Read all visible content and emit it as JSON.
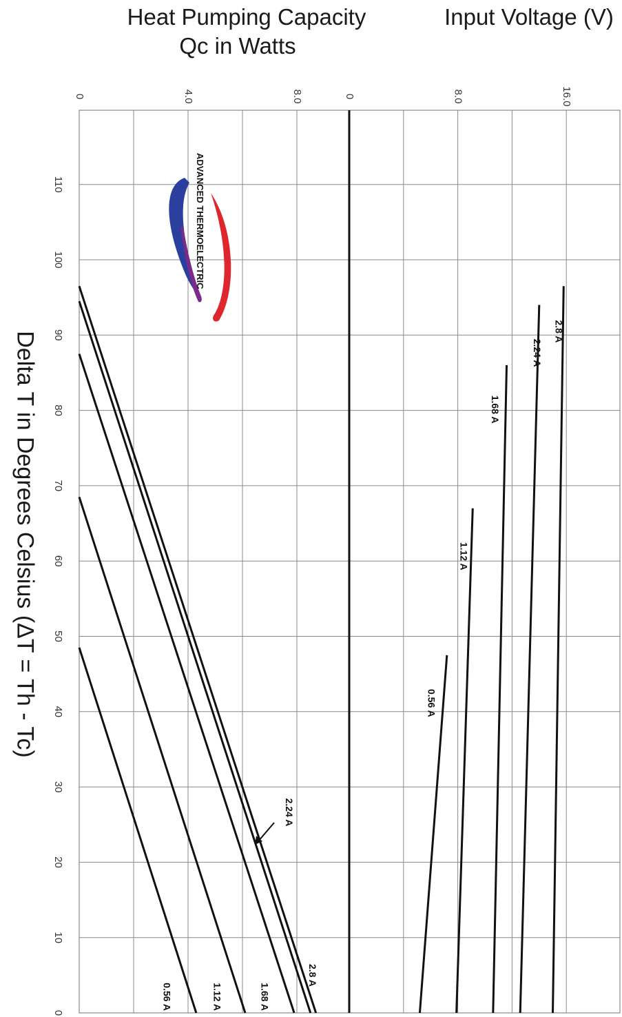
{
  "title_q_line1": "Heat Pumping Capacity",
  "title_q_line2": "Qc in Watts",
  "title_v": "Input Voltage (V)",
  "xlabel": "Delta T in Degrees Celsius    (ΔT = Th - Tc)",
  "logo_text": "ADVANCED THERMOELECTRIC",
  "colors": {
    "line": "#111111",
    "grid": "#888888",
    "logo_blue": "#2a3f9e",
    "logo_purple": "#7a2a8a",
    "logo_red": "#e0262d"
  },
  "chart_data": [
    {
      "type": "line",
      "title": "Heat Pumping Capacity Qc in Watts",
      "xlabel": "Delta T in Degrees Celsius (ΔT = Th - Tc)",
      "ylabel": "Heat Pumping Capacity Qc in Watts",
      "x_ticks": [
        0,
        10,
        20,
        30,
        40,
        50,
        60,
        70,
        80,
        90,
        100,
        110
      ],
      "y_ticks": [
        "0",
        "4.0",
        "8.0"
      ],
      "xlim": [
        0,
        120
      ],
      "ylim": [
        0,
        10
      ],
      "series": [
        {
          "name": "0.56 A",
          "x": [
            0,
            48.5
          ],
          "y": [
            4.3,
            0
          ]
        },
        {
          "name": "1.12 A",
          "x": [
            0,
            68.5
          ],
          "y": [
            6.1,
            0
          ]
        },
        {
          "name": "1.68 A",
          "x": [
            0,
            87.5
          ],
          "y": [
            7.9,
            0
          ]
        },
        {
          "name": "2.24 A",
          "x": [
            0,
            94.5
          ],
          "y": [
            8.5,
            0
          ]
        },
        {
          "name": "2.8 A",
          "x": [
            0,
            96.5
          ],
          "y": [
            8.7,
            0
          ]
        }
      ],
      "annotations": [
        {
          "text": "0.56 A",
          "x": 4,
          "y": 3.1
        },
        {
          "text": "1.12 A",
          "x": 4,
          "y": 4.95
        },
        {
          "text": "1.68 A",
          "x": 4,
          "y": 6.7
        },
        {
          "text": "2.8 A",
          "x": 6.5,
          "y": 8.45
        },
        {
          "text": "2.24 A",
          "x": 28.5,
          "y": 7.6
        }
      ]
    },
    {
      "type": "line",
      "title": "Input Voltage (V)",
      "xlabel": "Delta T in Degrees Celsius (ΔT = Th - Tc)",
      "ylabel": "Input Voltage (V)",
      "x_ticks": [
        0,
        10,
        20,
        30,
        40,
        50,
        60,
        70,
        80,
        90,
        100,
        110
      ],
      "y_ticks": [
        "0",
        "8.0",
        "16.0"
      ],
      "xlim": [
        0,
        120
      ],
      "ylim": [
        0,
        20
      ],
      "series": [
        {
          "name": "0.56 A",
          "x": [
            0,
            47.5
          ],
          "y": [
            5.2,
            7.2
          ]
        },
        {
          "name": "1.12 A",
          "x": [
            0,
            67
          ],
          "y": [
            7.9,
            9.1
          ]
        },
        {
          "name": "1.68 A",
          "x": [
            0,
            86
          ],
          "y": [
            10.6,
            11.6
          ]
        },
        {
          "name": "2.24 A",
          "x": [
            0,
            94
          ],
          "y": [
            12.6,
            14.0
          ]
        },
        {
          "name": "2.8 A",
          "x": [
            0,
            96.5
          ],
          "y": [
            15.0,
            15.8
          ]
        }
      ],
      "annotations": [
        {
          "text": "0.56 A",
          "x": 43,
          "y": 5.8
        },
        {
          "text": "1.12 A",
          "x": 62.5,
          "y": 8.2
        },
        {
          "text": "1.68 A",
          "x": 82,
          "y": 10.5
        },
        {
          "text": "2.24 A",
          "x": 89.5,
          "y": 13.6
        },
        {
          "text": "2.8 A",
          "x": 92,
          "y": 15.2
        }
      ]
    }
  ]
}
